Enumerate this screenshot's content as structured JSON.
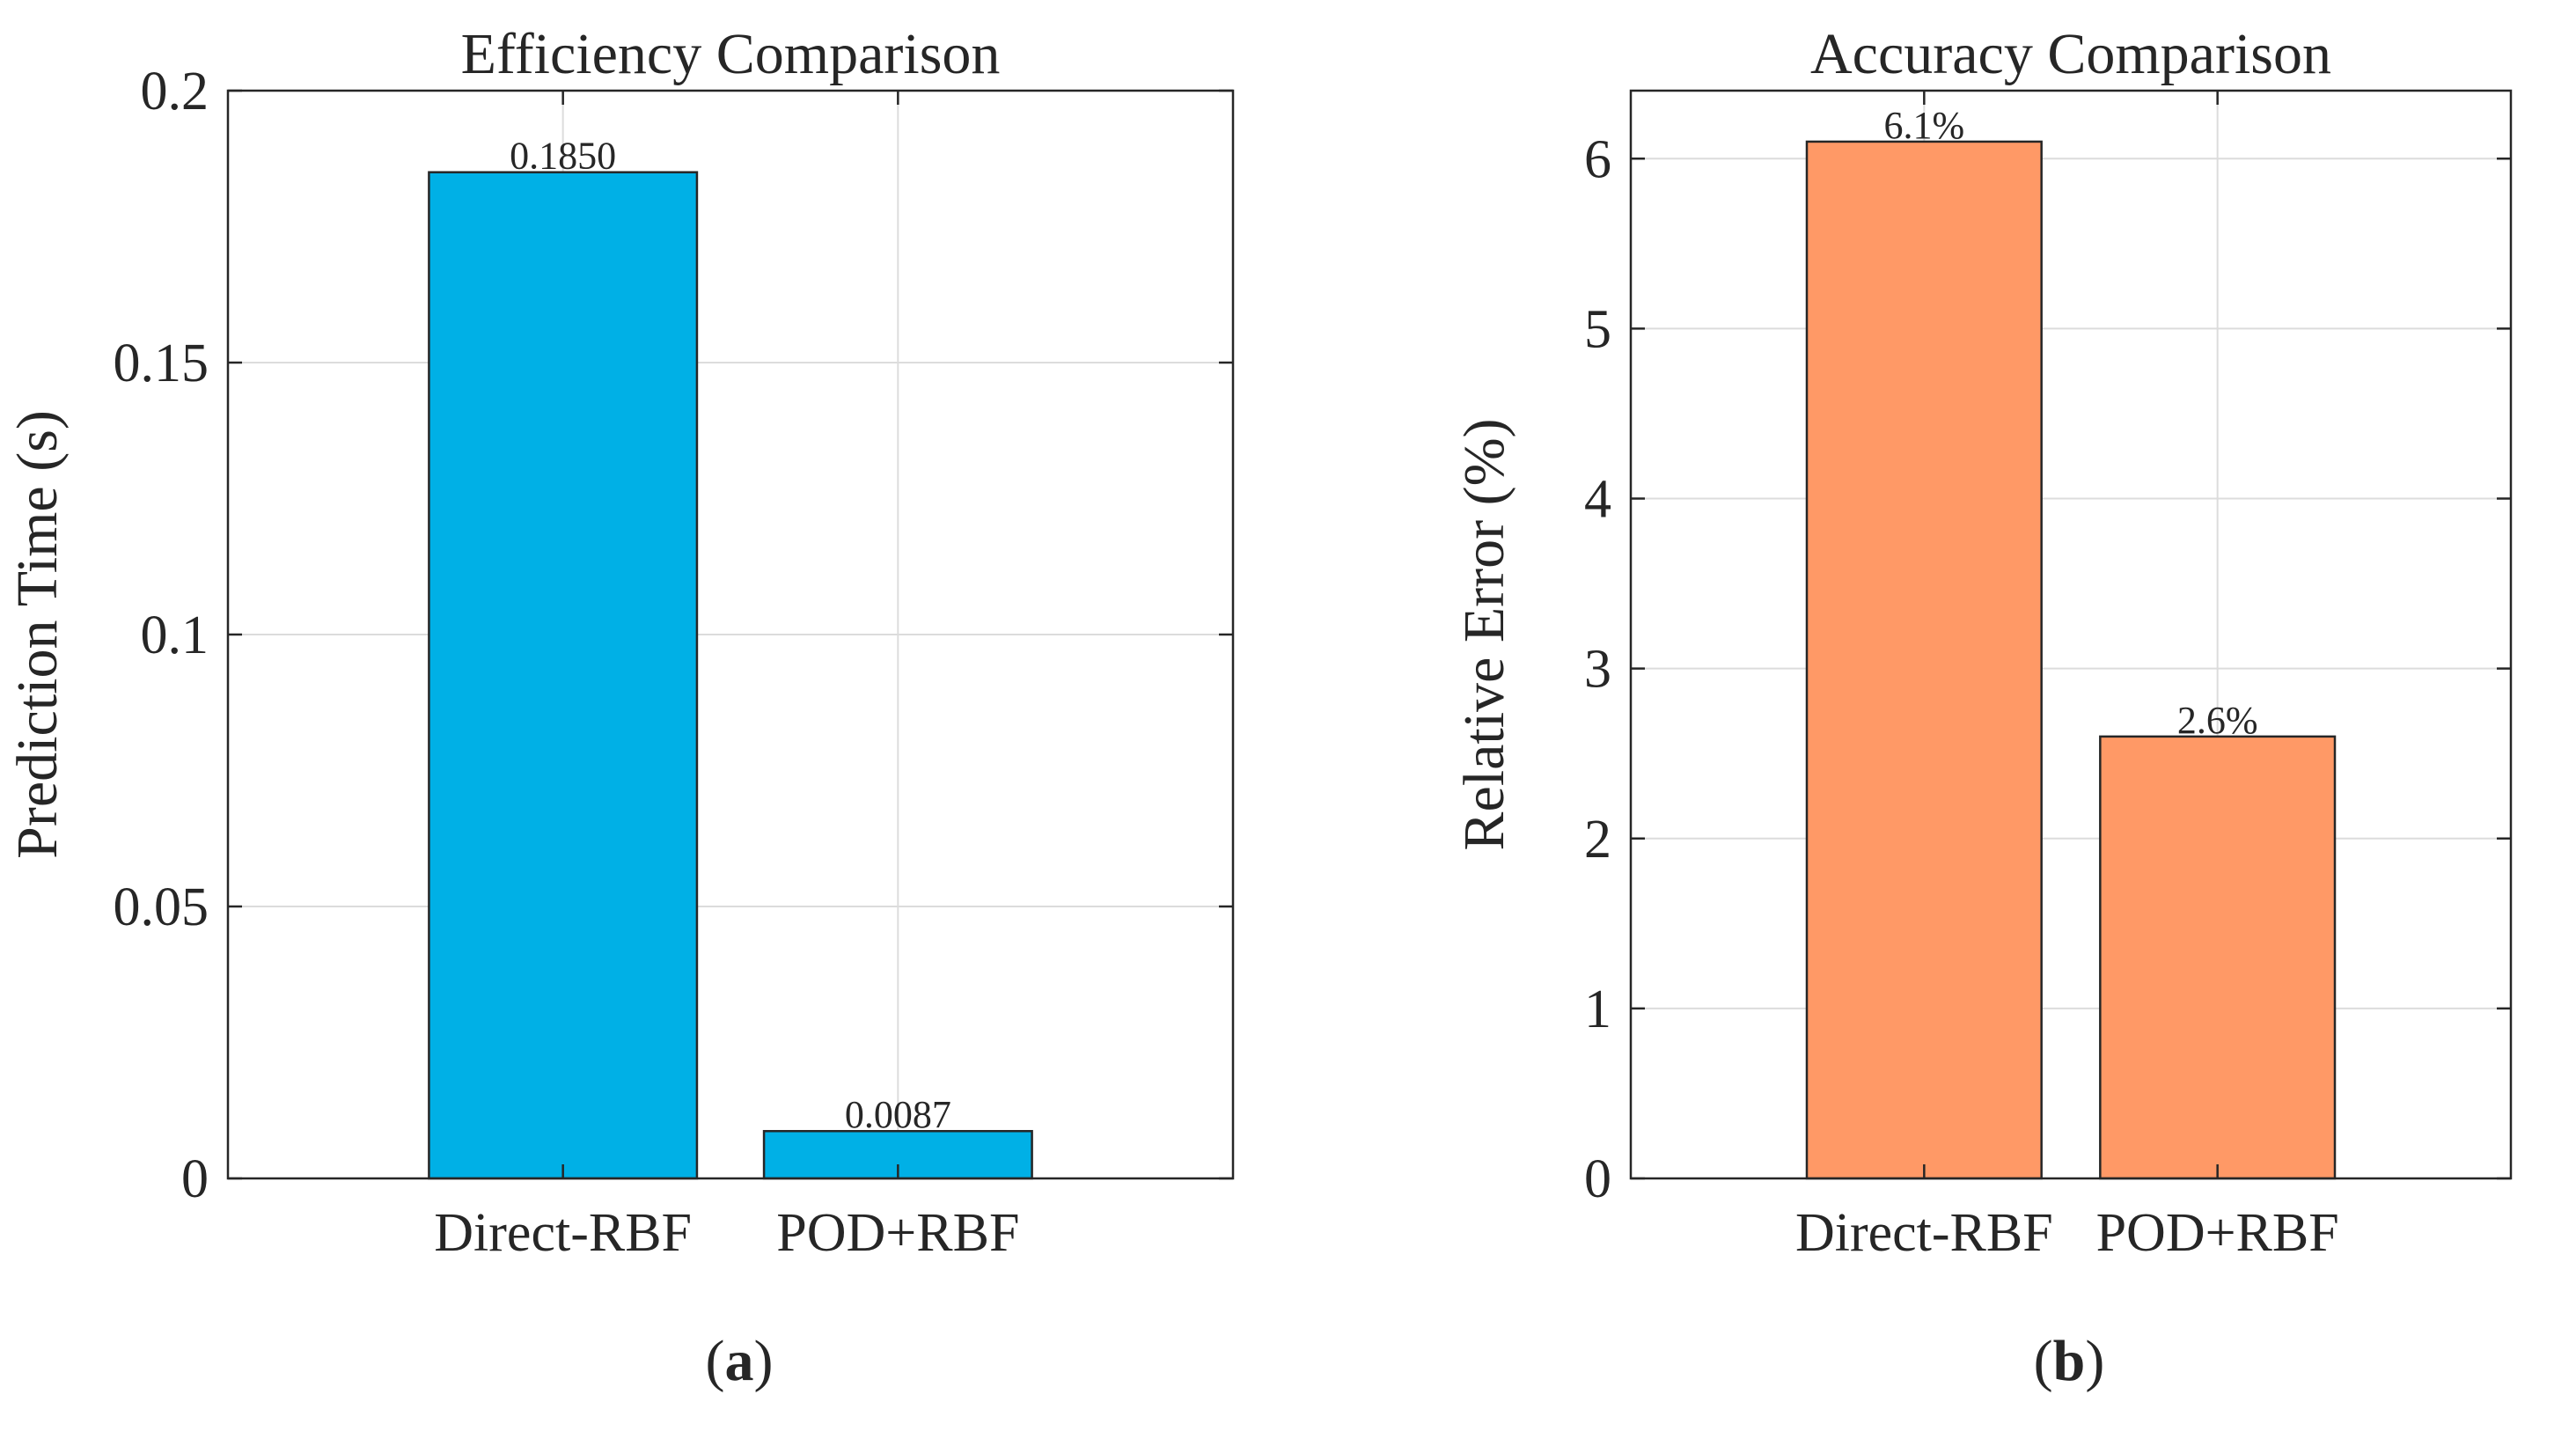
{
  "colors": {
    "panel_a_bar": "#00B0E6",
    "panel_b_bar": "#FF9966",
    "axis": "#262626",
    "grid": "#dcdcdc"
  },
  "chart_data": [
    {
      "type": "bar",
      "title": "Efficiency Comparison",
      "xlabel": "",
      "ylabel": "Prediction Time (s)",
      "categories": [
        "Direct-RBF",
        "POD+RBF"
      ],
      "values": [
        0.185,
        0.0087
      ],
      "data_labels": [
        "0.1850",
        "0.0087"
      ],
      "ylim": [
        0,
        0.2
      ],
      "yticks": [
        0,
        0.05,
        0.1,
        0.15,
        0.2
      ],
      "ytick_labels": [
        "0",
        "0.05",
        "0.1",
        "0.15",
        "0.2"
      ],
      "grid": true,
      "legend": "none",
      "caption_open": "(",
      "caption_letter": "a",
      "caption_close": ")"
    },
    {
      "type": "bar",
      "title": "Accuracy Comparison",
      "xlabel": "",
      "ylabel": "Relative Error (%)",
      "categories": [
        "Direct-RBF",
        "POD+RBF"
      ],
      "values": [
        6.1,
        2.6
      ],
      "data_labels": [
        "6.1%",
        "2.6%"
      ],
      "ylim": [
        0,
        6.4
      ],
      "yticks": [
        0,
        1,
        2,
        3,
        4,
        5,
        6
      ],
      "ytick_labels": [
        "0",
        "1",
        "2",
        "3",
        "4",
        "5",
        "6"
      ],
      "grid": true,
      "legend": "none",
      "caption_open": "(",
      "caption_letter": "b",
      "caption_close": ")"
    }
  ]
}
